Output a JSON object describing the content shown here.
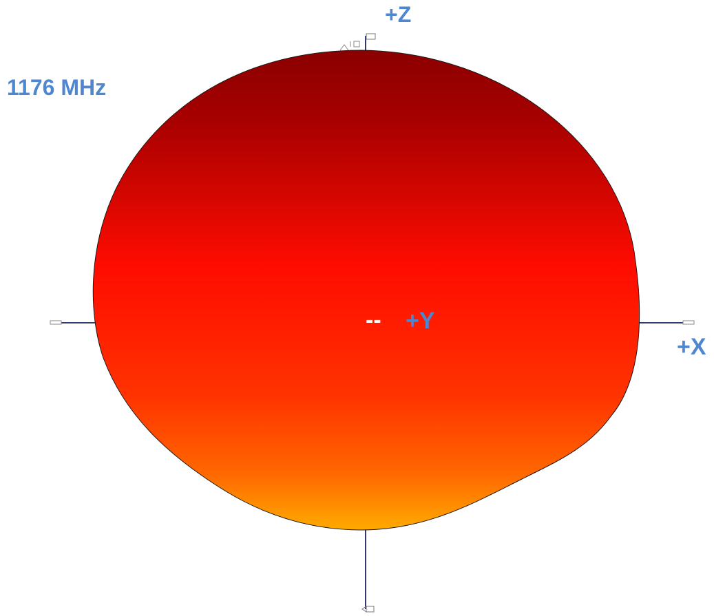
{
  "frequency_label": "1176 MHz",
  "axes": {
    "z_label": "+Z",
    "x_label": "+X",
    "y_label": "+Y",
    "y_dash": "--"
  },
  "colors": {
    "label": "#4f86d0",
    "axis_line": "#303a6e",
    "pattern_top": "#8b0000",
    "pattern_center": "#ff0f00",
    "pattern_bottom": "#ffaa00"
  }
}
